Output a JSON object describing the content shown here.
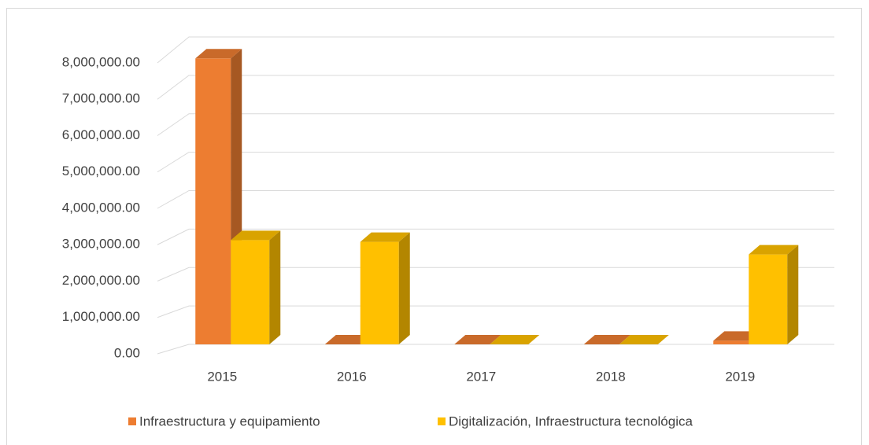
{
  "chart_data": {
    "type": "bar3d",
    "categories": [
      "2015",
      "2016",
      "2017",
      "2018",
      "2019"
    ],
    "series": [
      {
        "name": "Infraestructura y equipamiento",
        "color": "#ed7d31",
        "values": [
          7950000,
          0,
          0,
          0,
          100000
        ]
      },
      {
        "name": "Digitalización, Infraestructura tecnológica",
        "color": "#ffc000",
        "values": [
          2900000,
          2850000,
          0,
          0,
          2500000
        ]
      }
    ],
    "ylim": [
      0,
      8000000
    ],
    "yticks": [
      {
        "value": 0,
        "label": "0.00"
      },
      {
        "value": 1000000,
        "label": "1,000,000.00"
      },
      {
        "value": 2000000,
        "label": "2,000,000.00"
      },
      {
        "value": 3000000,
        "label": "3,000,000.00"
      },
      {
        "value": 4000000,
        "label": "4,000,000.00"
      },
      {
        "value": 5000000,
        "label": "5,000,000.00"
      },
      {
        "value": 6000000,
        "label": "6,000,000.00"
      },
      {
        "value": 7000000,
        "label": "7,000,000.00"
      },
      {
        "value": 8000000,
        "label": "8,000,000.00"
      }
    ],
    "grid": true,
    "legend": "bottom"
  }
}
